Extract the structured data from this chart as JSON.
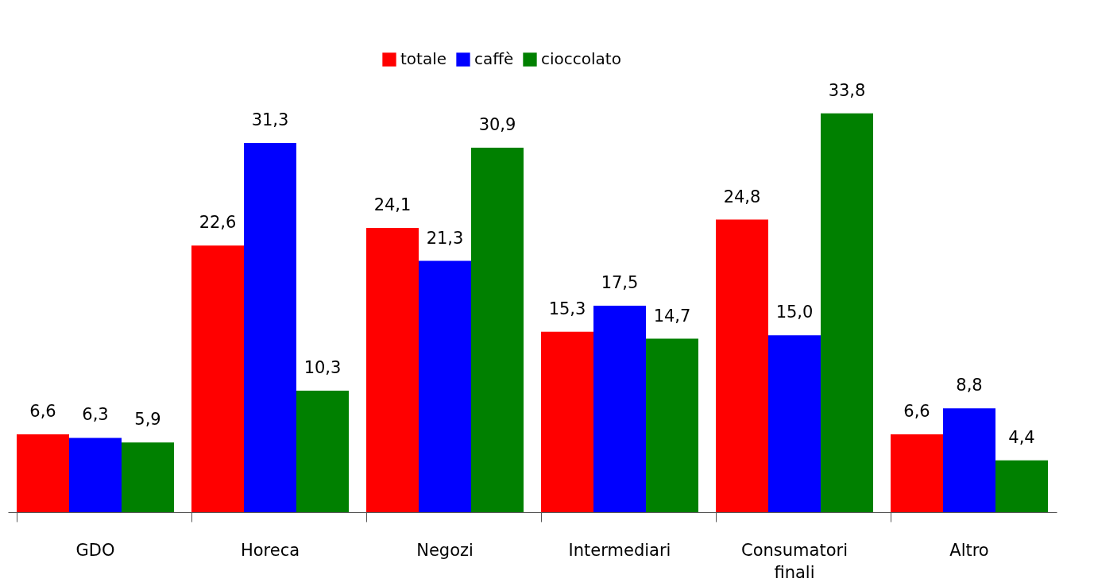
{
  "chart_data": {
    "type": "bar",
    "categories": [
      "GDO",
      "Horeca",
      "Negozi",
      "Intermediari",
      "Consumatori finali",
      "Altro"
    ],
    "series": [
      {
        "name": "totale",
        "color": "#ff0000",
        "values": [
          6.6,
          22.6,
          24.1,
          15.3,
          24.8,
          6.6
        ],
        "value_labels": [
          "6,6",
          "22,6",
          "24,1",
          "15,3",
          "24,8",
          "6,6"
        ]
      },
      {
        "name": "caffè",
        "color": "#0000ff",
        "values": [
          6.3,
          31.3,
          21.3,
          17.5,
          15.0,
          8.8
        ],
        "value_labels": [
          "6,3",
          "31,3",
          "21,3",
          "17,5",
          "15,0",
          "8,8"
        ]
      },
      {
        "name": "cioccolato",
        "color": "#008000",
        "values": [
          5.9,
          10.3,
          30.9,
          14.7,
          33.8,
          4.4
        ],
        "value_labels": [
          "5,9",
          "10,3",
          "30,9",
          "14,7",
          "33,8",
          "4,4"
        ]
      }
    ],
    "legend": "top",
    "grid": false
  }
}
